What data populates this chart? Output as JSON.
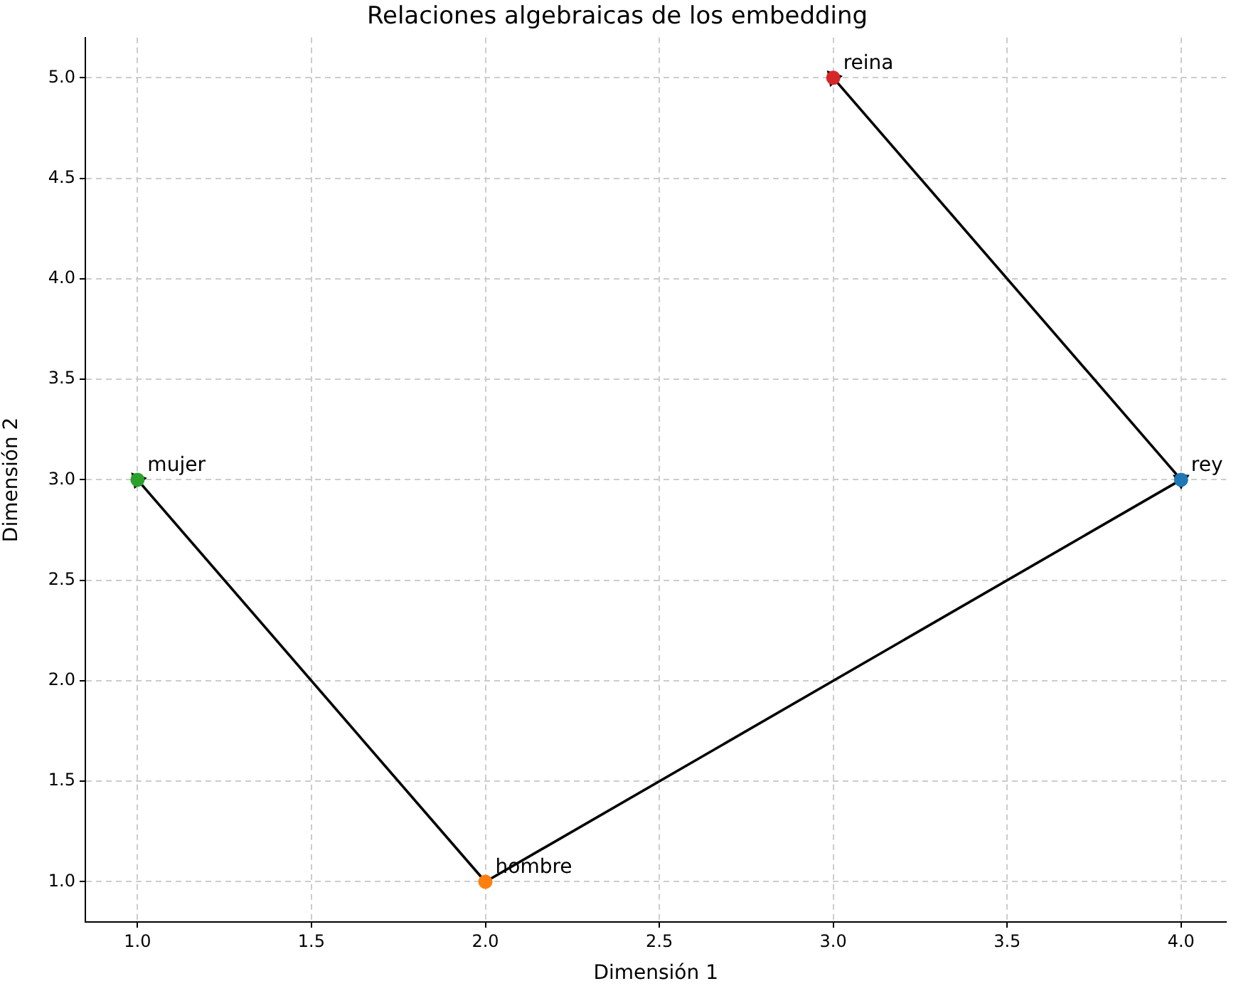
{
  "chart_data": {
    "type": "scatter",
    "title": "Relaciones algebraicas de los embedding",
    "xlabel": "Dimensión 1",
    "ylabel": "Dimensión 2",
    "xlim": [
      0.85,
      4.13
    ],
    "ylim": [
      0.8,
      5.2
    ],
    "xticks": [
      {
        "value": 1,
        "label": "1.0"
      },
      {
        "value": 1.5,
        "label": "1.5"
      },
      {
        "value": 2,
        "label": "2.0"
      },
      {
        "value": 2.5,
        "label": "2.5"
      },
      {
        "value": 3,
        "label": "3.0"
      },
      {
        "value": 3.5,
        "label": "3.5"
      },
      {
        "value": 4,
        "label": "4.0"
      }
    ],
    "yticks": [
      {
        "value": 1,
        "label": "1.0"
      },
      {
        "value": 1.5,
        "label": "1.5"
      },
      {
        "value": 2,
        "label": "2.0"
      },
      {
        "value": 2.5,
        "label": "2.5"
      },
      {
        "value": 3,
        "label": "3.0"
      },
      {
        "value": 3.5,
        "label": "3.5"
      },
      {
        "value": 4,
        "label": "4.0"
      },
      {
        "value": 4.5,
        "label": "4.5"
      },
      {
        "value": 5,
        "label": "5.0"
      }
    ],
    "grid": true,
    "legend": false,
    "marker": "circle",
    "series": [
      {
        "type": "line",
        "color": "#000000",
        "x": [
          2,
          4
        ],
        "values": [
          1,
          3
        ],
        "marker": "triangle"
      },
      {
        "type": "line",
        "color": "#000000",
        "x": [
          2,
          1
        ],
        "values": [
          1,
          3
        ],
        "marker": "triangle"
      },
      {
        "type": "line",
        "color": "#000000",
        "x": [
          4,
          3
        ],
        "values": [
          3,
          5
        ],
        "marker": "triangle"
      },
      {
        "name": "rey",
        "color": "#1f77b4",
        "x": [
          4
        ],
        "values": [
          3
        ]
      },
      {
        "name": "hombre",
        "color": "#ff7f0e",
        "x": [
          2
        ],
        "values": [
          1
        ]
      },
      {
        "name": "mujer",
        "color": "#2ca02c",
        "x": [
          1
        ],
        "values": [
          3
        ]
      },
      {
        "name": "reina",
        "color": "#d62728",
        "x": [
          3
        ],
        "values": [
          5
        ]
      }
    ]
  }
}
